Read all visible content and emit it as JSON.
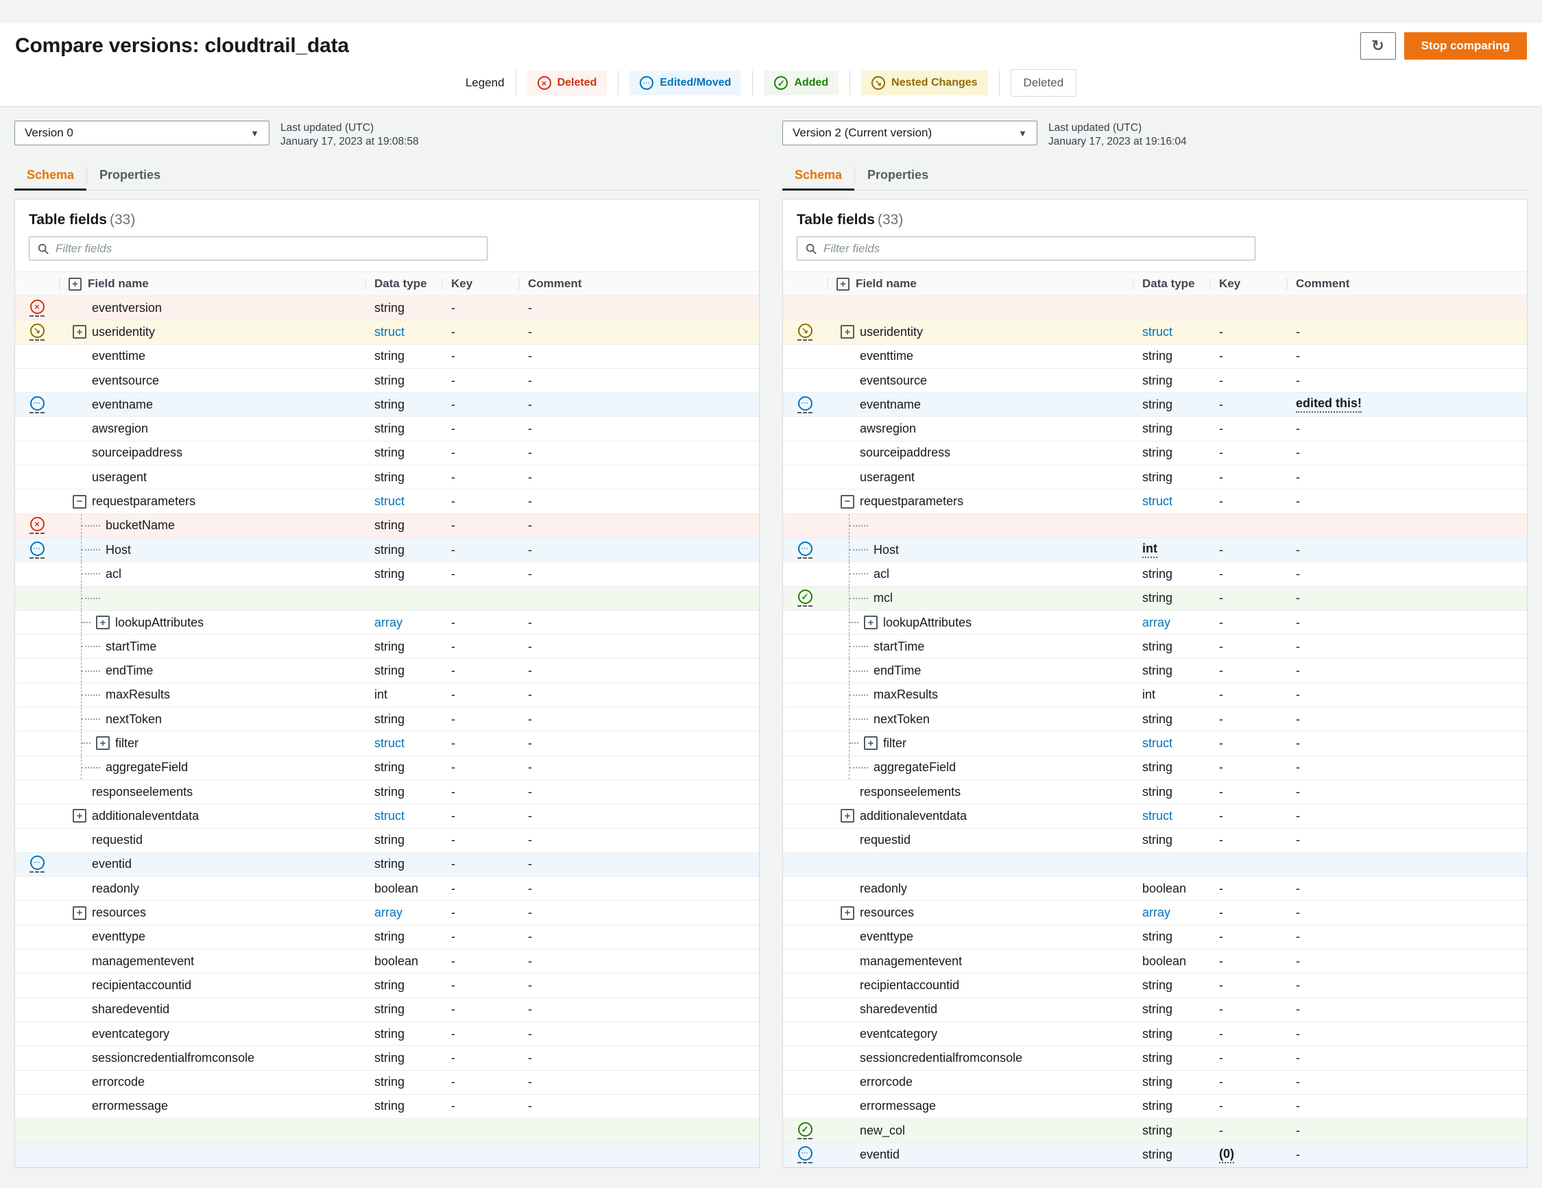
{
  "page": {
    "title": "Compare versions: cloudtrail_data",
    "stop_button": "Stop comparing",
    "refresh_icon": "refresh-icon"
  },
  "colors": {
    "accent_orange": "#ec7211",
    "deleted_red": "#d13212",
    "edited_blue": "#0073bb",
    "added_green": "#1d8102",
    "nested_gold": "#8f6c05"
  },
  "legend": {
    "label": "Legend",
    "badges": [
      {
        "label": "Deleted",
        "kind": "deleted",
        "icon": "x-circle-icon"
      },
      {
        "label": "Edited/Moved",
        "kind": "edited",
        "icon": "ellipsis-circle-icon"
      },
      {
        "label": "Added",
        "kind": "added",
        "icon": "check-circle-icon"
      },
      {
        "label": "Nested Changes",
        "kind": "nested",
        "icon": "nested-arrow-icon"
      }
    ],
    "plain_button": "Deleted"
  },
  "panels": [
    {
      "side": "left",
      "version": "Version 0",
      "last_updated_label": "Last updated (UTC)",
      "last_updated_value": "January 17, 2023 at 19:08:58",
      "tabs": [
        {
          "label": "Schema"
        },
        {
          "label": "Properties"
        }
      ],
      "table_title": "Table fields",
      "table_count": "(33)",
      "filter_placeholder": "Filter fields",
      "columns": [
        "Field name",
        "Data type",
        "Key",
        "Comment"
      ],
      "rows": [
        {
          "st": "deleted",
          "bg": "del",
          "nm": "eventversion",
          "tp": "string",
          "ky": "-",
          "cm": "-"
        },
        {
          "st": "nested",
          "bg": "nest",
          "ex": "plus",
          "nm": "useridentity",
          "tp": "struct",
          "tl": true,
          "ky": "-",
          "cm": "-"
        },
        {
          "nm": "eventtime",
          "tp": "string",
          "ky": "-",
          "cm": "-"
        },
        {
          "nm": "eventsource",
          "tp": "string",
          "ky": "-",
          "cm": "-"
        },
        {
          "st": "edited",
          "bg": "edit",
          "nm": "eventname",
          "tp": "string",
          "ky": "-",
          "cm": "-"
        },
        {
          "nm": "awsregion",
          "tp": "string",
          "ky": "-",
          "cm": "-"
        },
        {
          "nm": "sourceipaddress",
          "tp": "string",
          "ky": "-",
          "cm": "-"
        },
        {
          "nm": "useragent",
          "tp": "string",
          "ky": "-",
          "cm": "-"
        },
        {
          "ex": "minus",
          "nm": "requestparameters",
          "tp": "struct",
          "tl": true,
          "ky": "-",
          "cm": "-"
        },
        {
          "st": "deleted",
          "bg": "del",
          "lv": 1,
          "nm": "bucketName",
          "tp": "string",
          "ky": "-",
          "cm": "-"
        },
        {
          "st": "edited",
          "bg": "edit",
          "lv": 1,
          "nm": "Host",
          "tp": "string",
          "ky": "-",
          "cm": "-"
        },
        {
          "lv": 1,
          "nm": "acl",
          "tp": "string",
          "ky": "-",
          "cm": "-"
        },
        {
          "bg": "add",
          "lv": 1,
          "em": true
        },
        {
          "lv": 1,
          "ex": "plus",
          "nm": "lookupAttributes",
          "tp": "array",
          "tl": true,
          "ky": "-",
          "cm": "-"
        },
        {
          "lv": 1,
          "nm": "startTime",
          "tp": "string",
          "ky": "-",
          "cm": "-"
        },
        {
          "lv": 1,
          "nm": "endTime",
          "tp": "string",
          "ky": "-",
          "cm": "-"
        },
        {
          "lv": 1,
          "nm": "maxResults",
          "tp": "int",
          "ky": "-",
          "cm": "-"
        },
        {
          "lv": 1,
          "nm": "nextToken",
          "tp": "string",
          "ky": "-",
          "cm": "-"
        },
        {
          "lv": 1,
          "ex": "plus",
          "nm": "filter",
          "tp": "struct",
          "tl": true,
          "ky": "-",
          "cm": "-"
        },
        {
          "lv": 1,
          "nm": "aggregateField",
          "tp": "string",
          "ky": "-",
          "cm": "-"
        },
        {
          "nm": "responseelements",
          "tp": "string",
          "ky": "-",
          "cm": "-"
        },
        {
          "ex": "plus",
          "nm": "additionaleventdata",
          "tp": "struct",
          "tl": true,
          "ky": "-",
          "cm": "-"
        },
        {
          "nm": "requestid",
          "tp": "string",
          "ky": "-",
          "cm": "-"
        },
        {
          "st": "edited",
          "bg": "edit",
          "nm": "eventid",
          "tp": "string",
          "ky": "-",
          "cm": "-"
        },
        {
          "nm": "readonly",
          "tp": "boolean",
          "ky": "-",
          "cm": "-"
        },
        {
          "ex": "plus",
          "nm": "resources",
          "tp": "array",
          "tl": true,
          "ky": "-",
          "cm": "-"
        },
        {
          "nm": "eventtype",
          "tp": "string",
          "ky": "-",
          "cm": "-"
        },
        {
          "nm": "managementevent",
          "tp": "boolean",
          "ky": "-",
          "cm": "-"
        },
        {
          "nm": "recipientaccountid",
          "tp": "string",
          "ky": "-",
          "cm": "-"
        },
        {
          "nm": "sharedeventid",
          "tp": "string",
          "ky": "-",
          "cm": "-"
        },
        {
          "nm": "eventcategory",
          "tp": "string",
          "ky": "-",
          "cm": "-"
        },
        {
          "nm": "sessioncredentialfromconsole",
          "tp": "string",
          "ky": "-",
          "cm": "-"
        },
        {
          "nm": "errorcode",
          "tp": "string",
          "ky": "-",
          "cm": "-"
        },
        {
          "nm": "errormessage",
          "tp": "string",
          "ky": "-",
          "cm": "-"
        },
        {
          "bg": "add",
          "em": true
        },
        {
          "bg": "edit",
          "em": true
        }
      ]
    },
    {
      "side": "right",
      "version": "Version 2 (Current version)",
      "last_updated_label": "Last updated (UTC)",
      "last_updated_value": "January 17, 2023 at 19:16:04",
      "tabs": [
        {
          "label": "Schema"
        },
        {
          "label": "Properties"
        }
      ],
      "table_title": "Table fields",
      "table_count": "(33)",
      "filter_placeholder": "Filter fields",
      "columns": [
        "Field name",
        "Data type",
        "Key",
        "Comment"
      ],
      "rows": [
        {
          "bg": "del",
          "em": true
        },
        {
          "st": "nested",
          "bg": "nest",
          "ex": "plus",
          "nm": "useridentity",
          "tp": "struct",
          "tl": true,
          "ky": "-",
          "cm": "-"
        },
        {
          "nm": "eventtime",
          "tp": "string",
          "ky": "-",
          "cm": "-"
        },
        {
          "nm": "eventsource",
          "tp": "string",
          "ky": "-",
          "cm": "-"
        },
        {
          "st": "edited",
          "bg": "edit",
          "nm": "eventname",
          "tp": "string",
          "ky": "-",
          "cm": "edited this!",
          "ce": true
        },
        {
          "nm": "awsregion",
          "tp": "string",
          "ky": "-",
          "cm": "-"
        },
        {
          "nm": "sourceipaddress",
          "tp": "string",
          "ky": "-",
          "cm": "-"
        },
        {
          "nm": "useragent",
          "tp": "string",
          "ky": "-",
          "cm": "-"
        },
        {
          "ex": "minus",
          "nm": "requestparameters",
          "tp": "struct",
          "tl": true,
          "ky": "-",
          "cm": "-"
        },
        {
          "bg": "del",
          "lv": 1,
          "em": true
        },
        {
          "st": "edited",
          "bg": "edit",
          "lv": 1,
          "nm": "Host",
          "tp": "int",
          "te": true,
          "ky": "-",
          "cm": "-"
        },
        {
          "lv": 1,
          "nm": "acl",
          "tp": "string",
          "ky": "-",
          "cm": "-"
        },
        {
          "st": "added",
          "bg": "add",
          "lv": 1,
          "nm": "mcl",
          "tp": "string",
          "ky": "-",
          "cm": "-"
        },
        {
          "lv": 1,
          "ex": "plus",
          "nm": "lookupAttributes",
          "tp": "array",
          "tl": true,
          "ky": "-",
          "cm": "-"
        },
        {
          "lv": 1,
          "nm": "startTime",
          "tp": "string",
          "ky": "-",
          "cm": "-"
        },
        {
          "lv": 1,
          "nm": "endTime",
          "tp": "string",
          "ky": "-",
          "cm": "-"
        },
        {
          "lv": 1,
          "nm": "maxResults",
          "tp": "int",
          "ky": "-",
          "cm": "-"
        },
        {
          "lv": 1,
          "nm": "nextToken",
          "tp": "string",
          "ky": "-",
          "cm": "-"
        },
        {
          "lv": 1,
          "ex": "plus",
          "nm": "filter",
          "tp": "struct",
          "tl": true,
          "ky": "-",
          "cm": "-"
        },
        {
          "lv": 1,
          "nm": "aggregateField",
          "tp": "string",
          "ky": "-",
          "cm": "-"
        },
        {
          "nm": "responseelements",
          "tp": "string",
          "ky": "-",
          "cm": "-"
        },
        {
          "ex": "plus",
          "nm": "additionaleventdata",
          "tp": "struct",
          "tl": true,
          "ky": "-",
          "cm": "-"
        },
        {
          "nm": "requestid",
          "tp": "string",
          "ky": "-",
          "cm": "-"
        },
        {
          "bg": "edit",
          "em": true
        },
        {
          "nm": "readonly",
          "tp": "boolean",
          "ky": "-",
          "cm": "-"
        },
        {
          "ex": "plus",
          "nm": "resources",
          "tp": "array",
          "tl": true,
          "ky": "-",
          "cm": "-"
        },
        {
          "nm": "eventtype",
          "tp": "string",
          "ky": "-",
          "cm": "-"
        },
        {
          "nm": "managementevent",
          "tp": "boolean",
          "ky": "-",
          "cm": "-"
        },
        {
          "nm": "recipientaccountid",
          "tp": "string",
          "ky": "-",
          "cm": "-"
        },
        {
          "nm": "sharedeventid",
          "tp": "string",
          "ky": "-",
          "cm": "-"
        },
        {
          "nm": "eventcategory",
          "tp": "string",
          "ky": "-",
          "cm": "-"
        },
        {
          "nm": "sessioncredentialfromconsole",
          "tp": "string",
          "ky": "-",
          "cm": "-"
        },
        {
          "nm": "errorcode",
          "tp": "string",
          "ky": "-",
          "cm": "-"
        },
        {
          "nm": "errormessage",
          "tp": "string",
          "ky": "-",
          "cm": "-"
        },
        {
          "st": "added",
          "bg": "add",
          "nm": "new_col",
          "tp": "string",
          "ky": "-",
          "cm": "-"
        },
        {
          "st": "edited",
          "bg": "edit",
          "nm": "eventid",
          "tp": "string",
          "ky": "(0)",
          "ke": true,
          "cm": "-"
        }
      ]
    }
  ]
}
